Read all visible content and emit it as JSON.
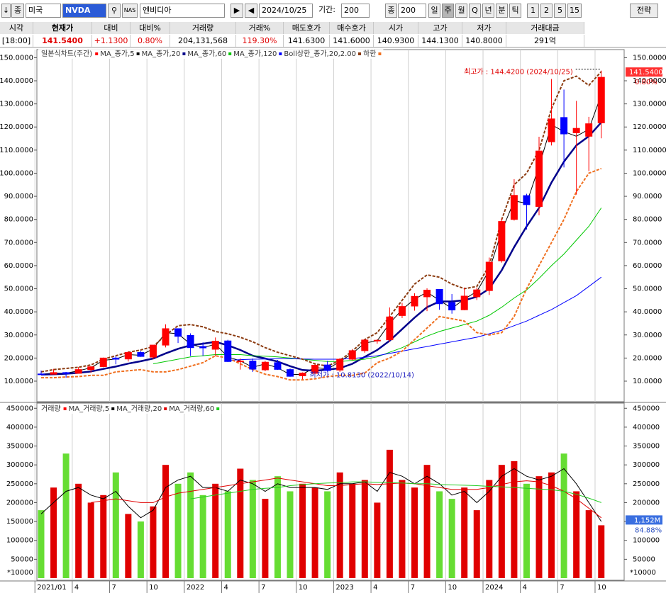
{
  "toolbar": {
    "arrow": "↓",
    "kind": "종",
    "market": "미국",
    "symbol": "NVDA",
    "name": "엔비디아",
    "date": "2024/10/25",
    "period_label": "기간:",
    "period": "200",
    "kind2": "종",
    "count": "200",
    "intervals": [
      "일",
      "주",
      "월",
      "Q",
      "년",
      "분",
      "틱",
      "1",
      "2",
      "5",
      "15"
    ],
    "strategy": "전략"
  },
  "quote": {
    "headers": [
      "시각",
      "현재가",
      "대비",
      "대비%",
      "거래량",
      "거래%",
      "매도호가",
      "매수호가",
      "시가",
      "고가",
      "저가",
      "거래대금"
    ],
    "values": [
      "[18:00]",
      "141.5400",
      "+1.1300",
      "0.80%",
      "204,131,568",
      "119.30%",
      "141.6300",
      "141.6000",
      "140.9300",
      "144.1300",
      "140.8000",
      "291억"
    ]
  },
  "chart_data": [
    {
      "type": "candlestick",
      "title": "일본식차트(주간)",
      "title_color": "#ff0000",
      "categories": [
        "2021/01",
        null,
        null,
        "4",
        null,
        null,
        "7",
        null,
        null,
        "10",
        null,
        null,
        "2022",
        null,
        null,
        "4",
        null,
        null,
        "7",
        null,
        null,
        "10",
        null,
        null,
        "2023",
        null,
        null,
        "4",
        null,
        null,
        "7",
        null,
        null,
        "10",
        null,
        null,
        "2024",
        null,
        null,
        "4",
        null,
        null,
        "7",
        null,
        null,
        "10"
      ],
      "open": [
        13.1,
        13.0,
        13.7,
        13.4,
        15.0,
        16.3,
        20.0,
        19.6,
        22.4,
        20.4,
        25.6,
        32.7,
        29.8,
        25.0,
        23.8,
        27.4,
        18.6,
        18.7,
        14.9,
        18.0,
        15.0,
        12.3,
        13.4,
        17.0,
        14.8,
        19.5,
        23.2,
        27.5,
        27.9,
        38.4,
        42.5,
        46.5,
        49.7,
        44.0,
        40.9,
        46.5,
        49.2,
        62.1,
        80.0,
        90.3,
        85.6,
        113.6,
        124.1,
        117.5,
        116.0,
        121.8
      ],
      "high": [
        14.6,
        15.3,
        14.0,
        16.1,
        16.5,
        20.2,
        20.9,
        23.0,
        23.1,
        25.6,
        34.6,
        32.8,
        30.7,
        26.8,
        28.9,
        27.9,
        19.8,
        19.8,
        18.8,
        19.2,
        15.5,
        13.8,
        17.3,
        18.8,
        20.0,
        23.9,
        27.9,
        28.1,
        41.9,
        43.9,
        48.0,
        50.2,
        49.8,
        47.7,
        50.5,
        50.5,
        63.5,
        80.4,
        97.4,
        91.1,
        115.8,
        140.8,
        136.2,
        131.3,
        124.4,
        144.4
      ],
      "low": [
        12.9,
        12.9,
        11.5,
        13.3,
        13.7,
        16.0,
        17.3,
        18.5,
        20.5,
        19.5,
        24.6,
        26.5,
        20.9,
        20.9,
        20.8,
        18.3,
        15.0,
        14.0,
        14.3,
        14.9,
        11.9,
        10.8,
        13.1,
        14.1,
        14.0,
        19.0,
        22.3,
        26.2,
        27.1,
        37.3,
        40.5,
        40.3,
        40.9,
        39.2,
        40.7,
        45.1,
        47.3,
        61.3,
        79.5,
        75.6,
        81.8,
        112.0,
        102.5,
        90.7,
        100.9,
        115.1
      ],
      "close": [
        13.0,
        13.7,
        13.3,
        15.0,
        16.2,
        20.0,
        19.5,
        22.4,
        20.7,
        25.6,
        32.7,
        29.4,
        24.5,
        24.4,
        27.3,
        18.5,
        18.7,
        15.2,
        18.2,
        15.1,
        12.1,
        13.5,
        16.9,
        14.6,
        19.5,
        23.2,
        27.8,
        27.7,
        37.8,
        42.3,
        46.7,
        49.4,
        43.5,
        40.8,
        46.8,
        49.5,
        61.5,
        79.1,
        90.4,
        86.4,
        109.6,
        123.5,
        117.0,
        119.4,
        121.4,
        141.5
      ],
      "up_color": "#ff0000",
      "down_color": "#0000ff",
      "series": [
        {
          "name": "MA_종가,5",
          "color": "#000000",
          "width": 1,
          "values": [
            13.0,
            13.5,
            13.4,
            14.5,
            15.8,
            19.0,
            19.6,
            21.5,
            21.2,
            24.0,
            31.0,
            30.5,
            26.0,
            24.5,
            26.0,
            20.5,
            18.8,
            16.0,
            17.5,
            15.8,
            12.8,
            13.0,
            16.0,
            15.2,
            18.5,
            22.0,
            26.5,
            27.5,
            35.0,
            41.0,
            45.5,
            48.5,
            45.0,
            41.5,
            45.5,
            48.8,
            58.0,
            75.0,
            88.0,
            87.0,
            103.0,
            121.0,
            118.0,
            116.0,
            119.0,
            134.0
          ]
        },
        {
          "name": "MA_종가,20",
          "color": "#00008b",
          "width": 2.5,
          "values": [
            12.8,
            13.0,
            13.2,
            13.6,
            14.2,
            15.3,
            16.3,
            17.6,
            18.6,
            19.8,
            22.0,
            24.0,
            25.5,
            26.2,
            27.0,
            25.5,
            23.5,
            21.0,
            19.8,
            18.5,
            16.5,
            14.8,
            14.5,
            15.0,
            15.6,
            17.5,
            20.5,
            23.5,
            27.5,
            32.5,
            37.5,
            42.0,
            44.5,
            44.5,
            45.0,
            46.5,
            50.0,
            58.0,
            68.0,
            77.0,
            85.0,
            96.0,
            105.0,
            112.0,
            116.0,
            122.0
          ]
        },
        {
          "name": "MA_종가,60",
          "color": "#00c800",
          "width": 1,
          "values": [
            null,
            null,
            null,
            null,
            null,
            null,
            null,
            null,
            null,
            17.5,
            18.5,
            19.5,
            20.5,
            21.0,
            21.5,
            21.5,
            21.5,
            21.0,
            20.8,
            20.5,
            20.0,
            19.5,
            19.0,
            18.5,
            18.5,
            19.0,
            19.5,
            20.5,
            22.5,
            24.5,
            27.0,
            29.5,
            31.5,
            33.0,
            34.5,
            36.0,
            38.5,
            42.0,
            46.0,
            49.5,
            54.5,
            60.0,
            65.0,
            71.0,
            77.0,
            85.0
          ]
        },
        {
          "name": "MA_종가,120",
          "color": "#0000ff",
          "width": 1,
          "values": [
            null,
            null,
            null,
            null,
            null,
            null,
            null,
            null,
            null,
            null,
            null,
            null,
            null,
            null,
            null,
            19.0,
            19.3,
            19.5,
            19.6,
            19.7,
            19.7,
            19.6,
            19.5,
            19.5,
            19.5,
            19.8,
            20.3,
            21.0,
            22.0,
            23.0,
            24.0,
            25.0,
            26.0,
            27.0,
            28.0,
            29.0,
            30.5,
            32.0,
            34.0,
            36.0,
            38.5,
            41.0,
            44.0,
            47.0,
            51.0,
            55.0
          ]
        },
        {
          "name": "Boll상한_종가,20,2.00",
          "color": "#8b3a0f",
          "width": 2,
          "dash": true,
          "values": [
            14.0,
            15.0,
            15.5,
            16.0,
            17.0,
            19.5,
            21.0,
            22.5,
            23.5,
            25.0,
            30.0,
            34.0,
            34.5,
            33.5,
            31.5,
            30.5,
            29.0,
            27.0,
            24.5,
            22.5,
            21.0,
            19.5,
            17.5,
            16.5,
            19.0,
            23.0,
            28.0,
            31.0,
            38.0,
            45.0,
            52.0,
            56.0,
            55.0,
            52.0,
            50.0,
            51.0,
            60.0,
            80.0,
            95.0,
            100.0,
            110.0,
            128.0,
            140.0,
            142.0,
            138.0,
            144.0
          ]
        },
        {
          "name": "하한",
          "color": "#f07020",
          "width": 2,
          "dash": true,
          "values": [
            11.5,
            11.5,
            11.8,
            12.0,
            12.5,
            12.5,
            14.0,
            14.5,
            15.0,
            14.0,
            14.0,
            15.0,
            16.5,
            18.0,
            21.0,
            20.0,
            17.5,
            15.0,
            13.0,
            12.0,
            10.5,
            10.5,
            11.0,
            12.0,
            12.5,
            12.5,
            13.5,
            18.0,
            20.0,
            23.0,
            28.0,
            33.0,
            38.0,
            37.0,
            36.0,
            31.0,
            30.0,
            31.0,
            38.0,
            50.0,
            60.0,
            70.0,
            80.0,
            92.0,
            100.0,
            102.0
          ]
        }
      ],
      "ylim": [
        1.1,
        153.5
      ],
      "yticks": [
        {
          "value": 10,
          "label": "10.0000"
        },
        {
          "value": 20,
          "label": "20.0000"
        },
        {
          "value": 30,
          "label": "30.0000"
        },
        {
          "value": 40,
          "label": "40.0000"
        },
        {
          "value": 50,
          "label": "50.0000"
        },
        {
          "value": 60,
          "label": "60.0000"
        },
        {
          "value": 70,
          "label": "70.0000"
        },
        {
          "value": 80,
          "label": "80.0000"
        },
        {
          "value": 90,
          "label": "90.0000"
        },
        {
          "value": 100,
          "label": "100.0000"
        },
        {
          "value": 110,
          "label": "110.0000"
        },
        {
          "value": 120,
          "label": "120.0000"
        },
        {
          "value": 130,
          "label": "130.0000"
        },
        {
          "value": 140,
          "label": "140.0000"
        },
        {
          "value": 150,
          "label": "150.0000"
        }
      ],
      "high_annotation": "최고가 : 144.4200 (2024/10/25)",
      "low_annotation": "최저가 : 10.8130 (2022/10/14)",
      "last_price_label": "141.5400",
      "last_change_label": "0.80%"
    },
    {
      "type": "bar",
      "title": "거래량",
      "title_color": "#ff0000",
      "values": [
        180000,
        240000,
        330000,
        250000,
        200000,
        220000,
        280000,
        170000,
        150000,
        190000,
        300000,
        250000,
        280000,
        220000,
        250000,
        230000,
        290000,
        260000,
        210000,
        270000,
        230000,
        250000,
        240000,
        230000,
        280000,
        250000,
        260000,
        200000,
        340000,
        260000,
        240000,
        300000,
        230000,
        210000,
        240000,
        180000,
        260000,
        300000,
        310000,
        250000,
        270000,
        280000,
        330000,
        230000,
        180000,
        140000
      ],
      "up_color": "#e00000",
      "down_color": "#66dd33",
      "series": [
        {
          "name": "MA_거래량,5",
          "color": "#000000",
          "values": [
            170000,
            200000,
            230000,
            240000,
            220000,
            210000,
            230000,
            190000,
            160000,
            180000,
            240000,
            260000,
            270000,
            240000,
            240000,
            230000,
            260000,
            250000,
            230000,
            250000,
            240000,
            240000,
            240000,
            235000,
            250000,
            250000,
            255000,
            230000,
            280000,
            270000,
            250000,
            270000,
            250000,
            220000,
            230000,
            200000,
            230000,
            270000,
            290000,
            270000,
            260000,
            270000,
            290000,
            250000,
            200000,
            150000
          ]
        },
        {
          "name": "MA_거래량,20",
          "color": "#e00000",
          "values": [
            null,
            null,
            null,
            null,
            200000,
            205000,
            210000,
            205000,
            200000,
            200000,
            215000,
            225000,
            230000,
            235000,
            240000,
            245000,
            250000,
            255000,
            260000,
            265000,
            260000,
            255000,
            250000,
            245000,
            245000,
            248000,
            250000,
            248000,
            250000,
            252000,
            250000,
            245000,
            240000,
            235000,
            235000,
            235000,
            240000,
            248000,
            255000,
            258000,
            255000,
            245000,
            230000,
            210000,
            185000,
            160000
          ]
        },
        {
          "name": "MA_거래량,60",
          "color": "#22cc22",
          "values": [
            null,
            null,
            null,
            null,
            null,
            null,
            null,
            null,
            null,
            null,
            null,
            null,
            210000,
            215000,
            220000,
            225000,
            230000,
            235000,
            238000,
            240000,
            245000,
            248000,
            250000,
            252000,
            253000,
            255000,
            255000,
            254000,
            253000,
            252000,
            250000,
            250000,
            248000,
            247000,
            246000,
            245000,
            243000,
            242000,
            240000,
            238000,
            236000,
            234000,
            230000,
            222000,
            212000,
            200000
          ]
        }
      ],
      "ylim": [
        0,
        458000
      ],
      "yticks": [
        50000,
        100000,
        150000,
        200000,
        250000,
        300000,
        350000,
        400000,
        450000
      ],
      "unit_label": "*10000",
      "last_volume_label": "1,152M",
      "last_volume_pct": "84.88%"
    }
  ]
}
